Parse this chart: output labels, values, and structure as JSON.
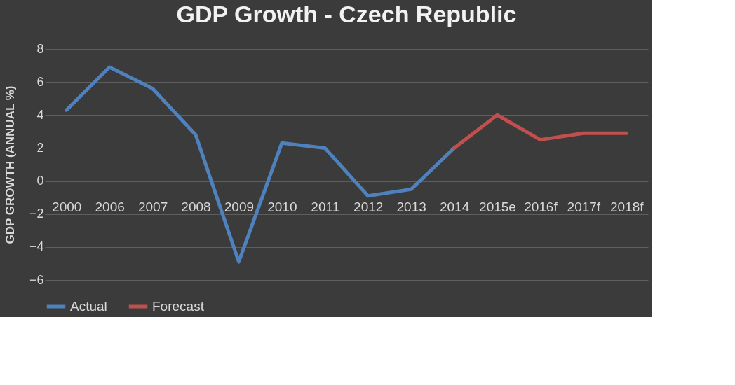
{
  "chart_data": {
    "type": "line",
    "title": "GDP Growth - Czech Republic",
    "ylabel": "GDP GROWTH (ANNUAL %)",
    "categories": [
      "2000",
      "2006",
      "2007",
      "2008",
      "2009",
      "2010",
      "2011",
      "2012",
      "2013",
      "2014",
      "2015e",
      "2016f",
      "2017f",
      "2018f"
    ],
    "series": [
      {
        "name": "Actual",
        "color": "#4f81bd",
        "values": [
          4.3,
          6.9,
          5.6,
          2.8,
          -4.9,
          2.3,
          2.0,
          -0.9,
          -0.5,
          2.0,
          null,
          null,
          null,
          null
        ]
      },
      {
        "name": "Forecast",
        "color": "#c0504d",
        "values": [
          null,
          null,
          null,
          null,
          null,
          null,
          null,
          null,
          null,
          2.0,
          4.0,
          2.5,
          2.9,
          2.9
        ]
      }
    ],
    "ylim": [
      -6,
      8
    ],
    "yticks": [
      -6,
      -4,
      -2,
      0,
      2,
      4,
      6,
      8
    ],
    "grid": "y",
    "legend": "bottom",
    "marker": "none",
    "line_style": "solid"
  }
}
